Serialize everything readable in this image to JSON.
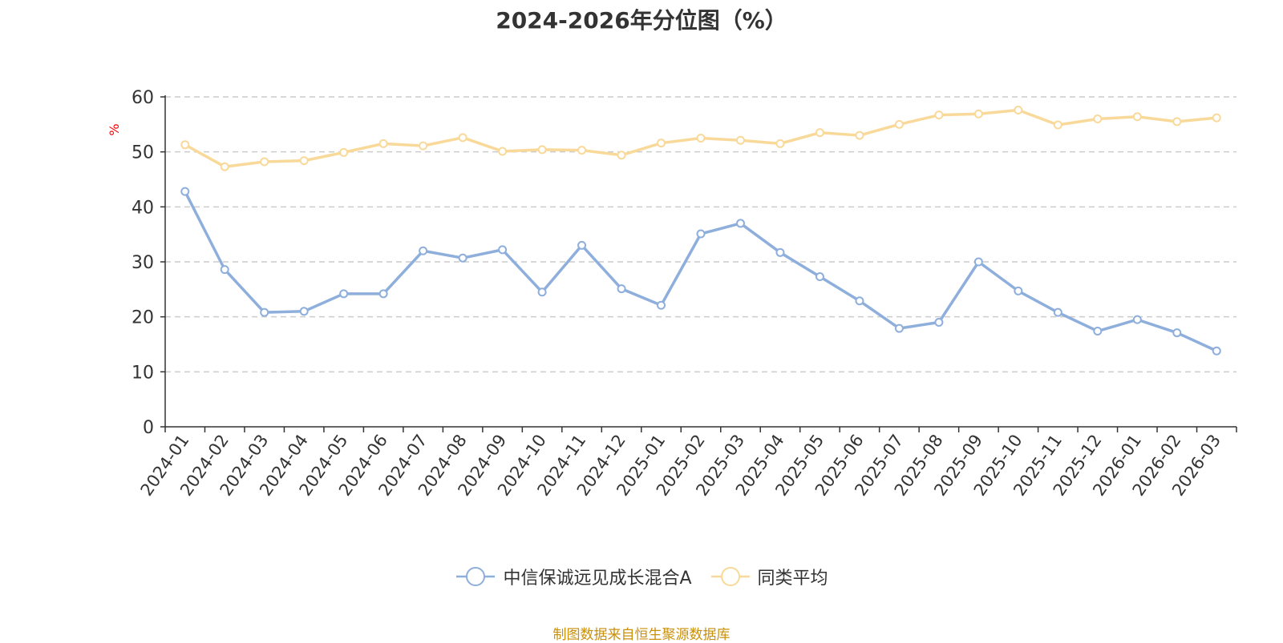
{
  "chart_data": {
    "type": "line",
    "title": "2024-2026年分位图（%）",
    "ylabel": "%",
    "xlabel": "",
    "ylim": [
      0,
      60
    ],
    "yticks": [
      0,
      10,
      20,
      30,
      40,
      50,
      60
    ],
    "grid": true,
    "legend_position": "bottom",
    "categories": [
      "2024-01",
      "2024-02",
      "2024-03",
      "2024-04",
      "2024-05",
      "2024-06",
      "2024-07",
      "2024-08",
      "2024-09",
      "2024-10",
      "2024-11",
      "2024-12",
      "2025-01",
      "2025-02",
      "2025-03",
      "2025-04",
      "2025-05",
      "2025-06",
      "2025-07",
      "2025-08",
      "2025-09",
      "2025-10",
      "2025-11",
      "2025-12",
      "2026-01",
      "2026-02",
      "2026-03"
    ],
    "series": [
      {
        "name": "中信保诚远见成长混合A",
        "color": "#8eaedc",
        "values": [
          42.8,
          28.6,
          20.8,
          21.0,
          24.2,
          24.2,
          32.0,
          30.7,
          32.2,
          24.5,
          33.0,
          25.1,
          22.1,
          35.1,
          37.0,
          31.7,
          27.3,
          22.9,
          17.9,
          19.0,
          30.0,
          24.7,
          20.8,
          17.4,
          19.5,
          17.1,
          13.8
        ]
      },
      {
        "name": "同类平均",
        "color": "#f9d999",
        "values": [
          51.3,
          47.3,
          48.2,
          48.4,
          49.9,
          51.5,
          51.1,
          52.6,
          50.1,
          50.4,
          50.3,
          49.4,
          51.6,
          52.5,
          52.1,
          51.5,
          53.5,
          53.0,
          55.0,
          56.7,
          56.9,
          57.6,
          54.9,
          56.0,
          56.4,
          55.5,
          56.2
        ]
      }
    ]
  },
  "source_note": "制图数据来自恒生聚源数据库"
}
